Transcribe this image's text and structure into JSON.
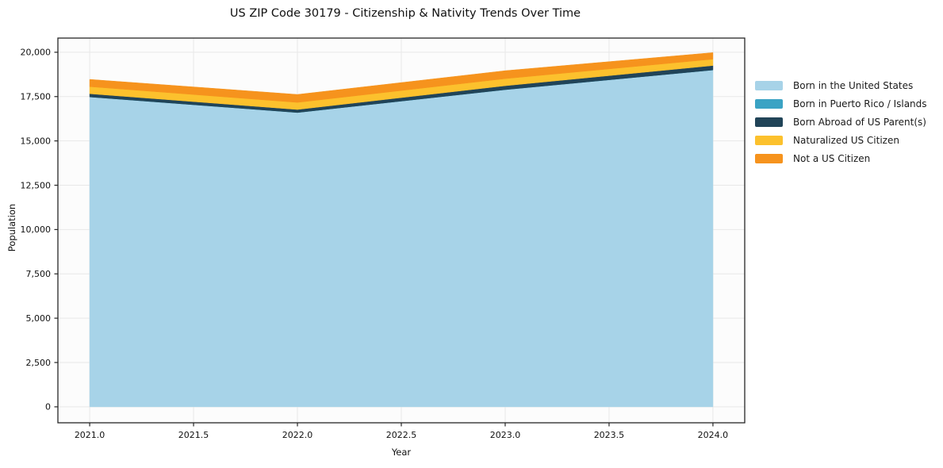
{
  "chart_data": {
    "type": "area",
    "stacked": true,
    "title": "US ZIP Code 30179 - Citizenship & Nativity Trends Over Time",
    "xlabel": "Year",
    "ylabel": "Population",
    "x": [
      2021,
      2022,
      2023,
      2024
    ],
    "series": [
      {
        "name": "Born in the United States",
        "color": "#a7d3e8",
        "values": [
          17480,
          16600,
          17890,
          19000
        ]
      },
      {
        "name": "Born in Puerto Rico / Islands",
        "color": "#3ba3c4",
        "values": [
          0,
          0,
          0,
          0
        ]
      },
      {
        "name": "Born Abroad of US Parent(s)",
        "color": "#214458",
        "values": [
          180,
          170,
          220,
          250
        ]
      },
      {
        "name": "Naturalized US Citizen",
        "color": "#fcc12d",
        "values": [
          400,
          400,
          400,
          360
        ]
      },
      {
        "name": "Not a US Citizen",
        "color": "#f6931d",
        "values": [
          410,
          450,
          450,
          370
        ]
      }
    ],
    "totals": [
      18470,
      17620,
      18960,
      19980
    ],
    "xticks": [
      2021.0,
      2021.5,
      2022.0,
      2022.5,
      2023.0,
      2023.5,
      2024.0
    ],
    "xtick_labels": [
      "2021.0",
      "2021.5",
      "2022.0",
      "2022.5",
      "2023.0",
      "2023.5",
      "2024.0"
    ],
    "yticks": [
      0,
      2500,
      5000,
      7500,
      10000,
      12500,
      15000,
      17500,
      20000
    ],
    "ytick_labels": [
      "0",
      "2,500",
      "5,000",
      "7,500",
      "10,000",
      "12,500",
      "15,000",
      "17,500",
      "20,000"
    ],
    "xlim": [
      2020.847,
      2024.153
    ],
    "ylim": [
      -900,
      20800
    ],
    "grid": true,
    "legend_position": "right-outside",
    "colors": {
      "spine": "#262626",
      "tick": "#262626",
      "grid": "#e8e8e8",
      "plot_bg": "#fcfcfc",
      "text": "#111111"
    }
  }
}
